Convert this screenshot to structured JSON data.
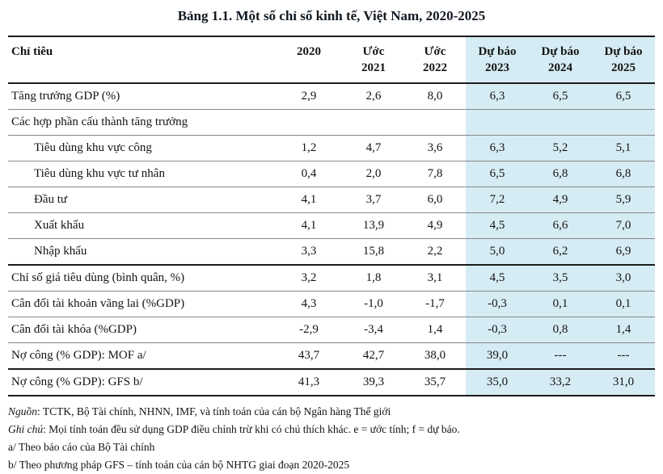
{
  "title": "Bảng 1.1. Một số chỉ số kinh tế, Việt Nam, 2020-2025",
  "colors": {
    "forecast_bg": "#d6ecf4",
    "rule_dark": "#1c1c1c",
    "rule_light": "#888888",
    "text": "#131313",
    "title": "#101820"
  },
  "table": {
    "columns": [
      {
        "label": "Chỉ tiêu"
      },
      {
        "label": "2020"
      },
      {
        "label": "Ước\n2021"
      },
      {
        "label": "Ước\n2022"
      },
      {
        "label": "Dự báo\n2023",
        "forecast": true
      },
      {
        "label": "Dự báo\n2024",
        "forecast": true
      },
      {
        "label": "Dự báo\n2025",
        "forecast": true
      }
    ],
    "rows": [
      {
        "label": "Tăng trưởng GDP (%)",
        "indent": false,
        "values": [
          "2,9",
          "2,6",
          "8,0",
          "6,3",
          "6,5",
          "6,5"
        ]
      },
      {
        "label": "Các hợp phần cấu thành tăng trưởng",
        "indent": false,
        "values": [
          "",
          "",
          "",
          "",
          "",
          ""
        ]
      },
      {
        "label": "Tiêu dùng khu vực công",
        "indent": true,
        "values": [
          "1,2",
          "4,7",
          "3,6",
          "6,3",
          "5,2",
          "5,1"
        ]
      },
      {
        "label": "Tiêu dùng khu vực tư nhân",
        "indent": true,
        "values": [
          "0,4",
          "2,0",
          "7,8",
          "6,5",
          "6,8",
          "6,8"
        ]
      },
      {
        "label": "Đầu tư",
        "indent": true,
        "values": [
          "4,1",
          "3,7",
          "6,0",
          "7,2",
          "4,9",
          "5,9"
        ]
      },
      {
        "label": "Xuất khẩu",
        "indent": true,
        "values": [
          "4,1",
          "13,9",
          "4,9",
          "4,5",
          "6,6",
          "7,0"
        ]
      },
      {
        "label": "Nhập khẩu",
        "indent": true,
        "values": [
          "3,3",
          "15,8",
          "2,2",
          "5,0",
          "6,2",
          "6,9"
        ]
      },
      {
        "label": "Chỉ số giá tiêu dùng (bình quân, %)",
        "indent": false,
        "values": [
          "3,2",
          "1,8",
          "3,1",
          "4,5",
          "3,5",
          "3,0"
        ]
      },
      {
        "label": "Cân đối tài khoản vãng lai (%GDP)",
        "indent": false,
        "values": [
          "4,3",
          "-1,0",
          "-1,7",
          "-0,3",
          "0,1",
          "0,1"
        ]
      },
      {
        "label": "Cân đối tài khóa (%GDP)",
        "indent": false,
        "values": [
          "-2,9",
          "-3,4",
          "1,4",
          "-0,3",
          "0,8",
          "1,4"
        ]
      },
      {
        "label": "Nợ công (% GDP): MOF a/",
        "indent": false,
        "values": [
          "43,7",
          "42,7",
          "38,0",
          "39,0",
          "---",
          "---"
        ]
      },
      {
        "label": "Nợ công (% GDP): GFS b/",
        "indent": false,
        "values": [
          "41,3",
          "39,3",
          "35,7",
          "35,0",
          "33,2",
          "31,0"
        ]
      }
    ]
  },
  "notes": [
    {
      "label": "Nguồn",
      "text": ": TCTK, Bộ Tài chính, NHNN, IMF, và tính toán của cán bộ Ngân hàng Thế giới"
    },
    {
      "label": "Ghi chú",
      "text": ": Mọi tính toán đều sử dụng GDP điều chỉnh trừ khi có chú thích khác. e = ước tính; f = dự báo."
    },
    {
      "label": "",
      "text": "a/ Theo báo cáo của Bộ Tài chính"
    },
    {
      "label": "",
      "text": "b/ Theo phương pháp GFS – tính toán của cán bộ NHTG giai đoạn 2020-2025"
    }
  ]
}
